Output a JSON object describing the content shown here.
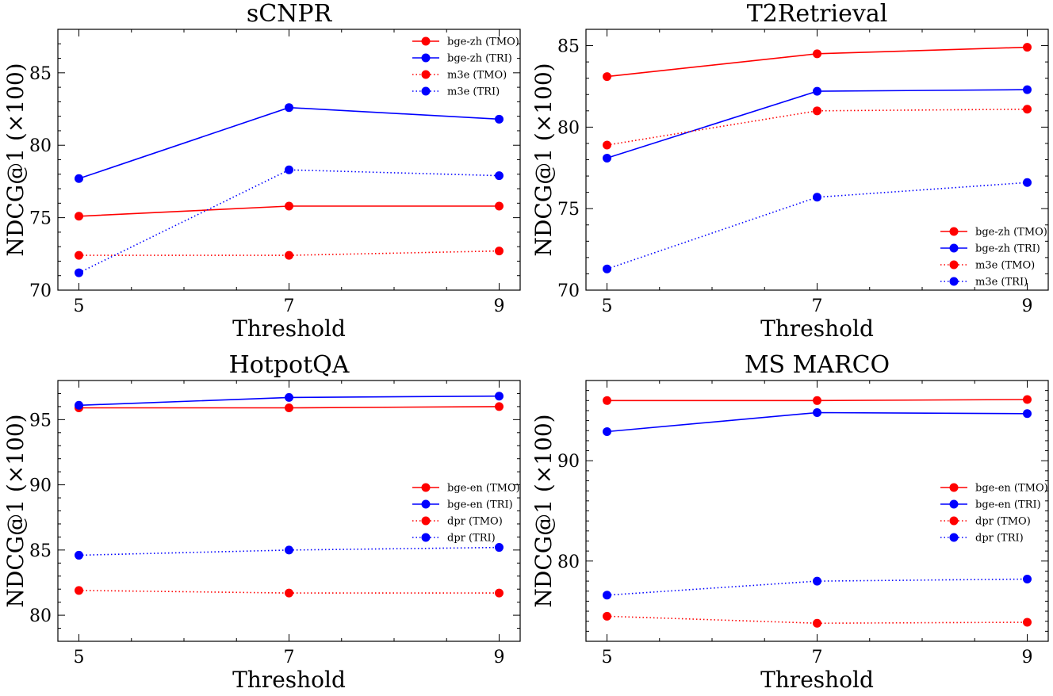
{
  "chart_data": [
    {
      "type": "line",
      "title": "sCNPR",
      "xlabel": "Threshold",
      "ylabel": "NDCG@1 (×100)",
      "x": [
        5,
        7,
        9
      ],
      "xticks": [
        "5",
        "7",
        "9"
      ],
      "ylim": [
        70,
        88
      ],
      "yticks": [
        70,
        75,
        80,
        85
      ],
      "ytick_labels": [
        "70",
        "75",
        "80",
        "85"
      ],
      "legend_position": "top-right",
      "series": [
        {
          "name": "bge-zh (TMO)",
          "color": "#ff0000",
          "style": "solid",
          "values": [
            75.1,
            75.8,
            75.8
          ]
        },
        {
          "name": "bge-zh (TRI)",
          "color": "#0000ff",
          "style": "solid",
          "values": [
            77.7,
            82.6,
            81.8
          ]
        },
        {
          "name": "m3e (TMO)",
          "color": "#ff0000",
          "style": "dotted",
          "values": [
            72.4,
            72.4,
            72.7
          ]
        },
        {
          "name": "m3e (TRI)",
          "color": "#0000ff",
          "style": "dotted",
          "values": [
            71.2,
            78.3,
            77.9
          ]
        }
      ]
    },
    {
      "type": "line",
      "title": "T2Retrieval",
      "xlabel": "Threshold",
      "ylabel": "NDCG@1 (×100)",
      "x": [
        5,
        7,
        9
      ],
      "xticks": [
        "5",
        "7",
        "9"
      ],
      "ylim": [
        70,
        86
      ],
      "yticks": [
        70,
        75,
        80,
        85
      ],
      "ytick_labels": [
        "70",
        "75",
        "80",
        "85"
      ],
      "legend_position": "bottom-right",
      "series": [
        {
          "name": "bge-zh (TMO)",
          "color": "#ff0000",
          "style": "solid",
          "values": [
            83.1,
            84.5,
            84.9
          ]
        },
        {
          "name": "bge-zh (TRI)",
          "color": "#0000ff",
          "style": "solid",
          "values": [
            78.1,
            82.2,
            82.3
          ]
        },
        {
          "name": "m3e (TMO)",
          "color": "#ff0000",
          "style": "dotted",
          "values": [
            78.9,
            81.0,
            81.1
          ]
        },
        {
          "name": "m3e (TRI)",
          "color": "#0000ff",
          "style": "dotted",
          "values": [
            71.3,
            75.7,
            76.6
          ]
        }
      ]
    },
    {
      "type": "line",
      "title": "HotpotQA",
      "xlabel": "Threshold",
      "ylabel": "NDCG@1 (×100)",
      "x": [
        5,
        7,
        9
      ],
      "xticks": [
        "5",
        "7",
        "9"
      ],
      "ylim": [
        78,
        98
      ],
      "yticks": [
        80,
        85,
        90,
        95
      ],
      "ytick_labels": [
        "80",
        "85",
        "90",
        "95"
      ],
      "legend_position": "center-right",
      "series": [
        {
          "name": "bge-en (TMO)",
          "color": "#ff0000",
          "style": "solid",
          "values": [
            95.9,
            95.9,
            96.0
          ]
        },
        {
          "name": "bge-en (TRI)",
          "color": "#0000ff",
          "style": "solid",
          "values": [
            96.1,
            96.7,
            96.8
          ]
        },
        {
          "name": "dpr (TMO)",
          "color": "#ff0000",
          "style": "dotted",
          "values": [
            81.9,
            81.7,
            81.7
          ]
        },
        {
          "name": "dpr (TRI)",
          "color": "#0000ff",
          "style": "dotted",
          "values": [
            84.6,
            85.0,
            85.2
          ]
        }
      ]
    },
    {
      "type": "line",
      "title": "MS MARCO",
      "xlabel": "Threshold",
      "ylabel": "NDCG@1 (×100)",
      "x": [
        5,
        7,
        9
      ],
      "xticks": [
        "5",
        "7",
        "9"
      ],
      "ylim": [
        72,
        98
      ],
      "yticks": [
        80,
        90
      ],
      "ytick_labels": [
        "80",
        "90"
      ],
      "legend_position": "center-right",
      "series": [
        {
          "name": "bge-en (TMO)",
          "color": "#ff0000",
          "style": "solid",
          "values": [
            96.0,
            96.0,
            96.1
          ]
        },
        {
          "name": "bge-en (TRI)",
          "color": "#0000ff",
          "style": "solid",
          "values": [
            92.9,
            94.8,
            94.7
          ]
        },
        {
          "name": "dpr (TMO)",
          "color": "#ff0000",
          "style": "dotted",
          "values": [
            74.5,
            73.8,
            73.9
          ]
        },
        {
          "name": "dpr (TRI)",
          "color": "#0000ff",
          "style": "dotted",
          "values": [
            76.6,
            78.0,
            78.2
          ]
        }
      ]
    }
  ]
}
